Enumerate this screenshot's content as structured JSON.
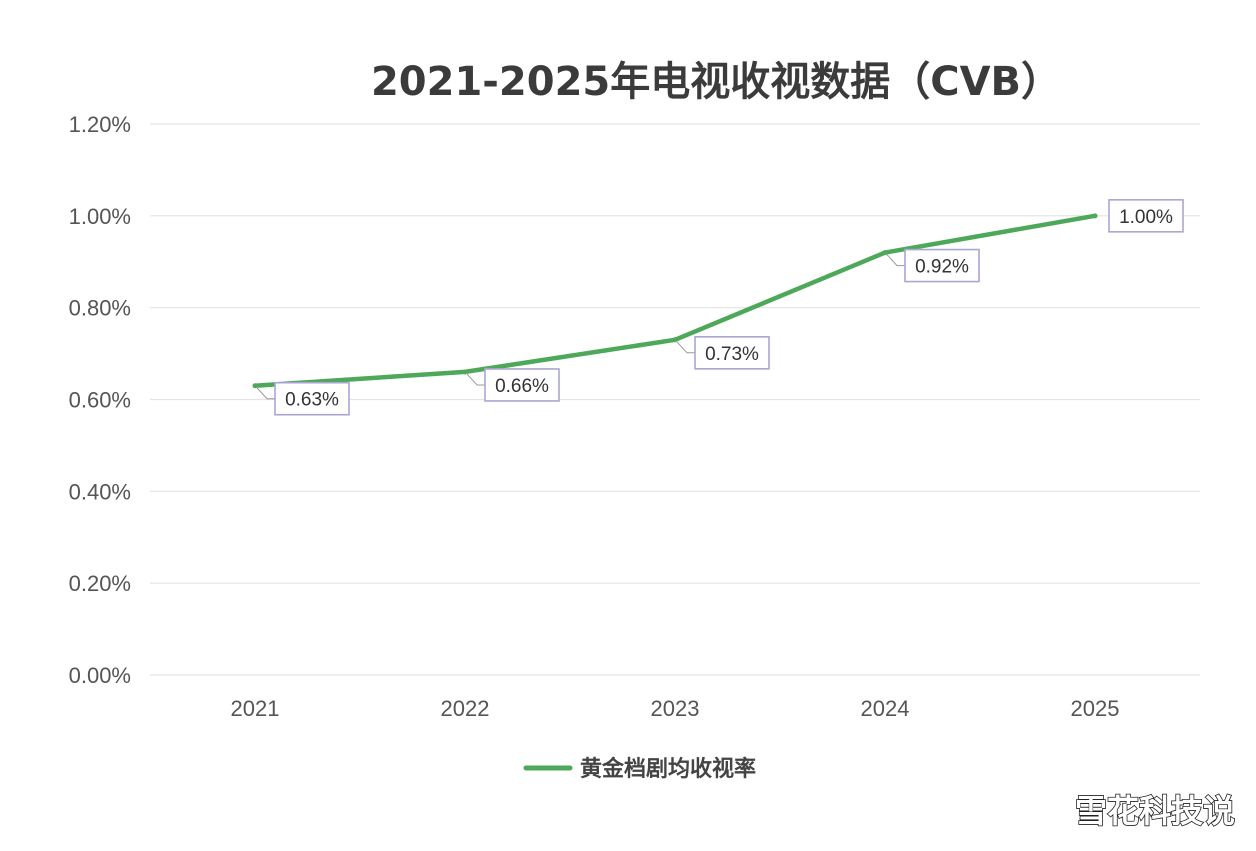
{
  "chart_data": {
    "type": "line",
    "title": "2021-2025年电视收视数据（CVB）",
    "categories": [
      "2021",
      "2022",
      "2023",
      "2024",
      "2025"
    ],
    "series": [
      {
        "name": "黄金档剧均收视率",
        "values": [
          0.63,
          0.66,
          0.73,
          0.92,
          1.0
        ],
        "labels": [
          "0.63%",
          "0.66%",
          "0.73%",
          "0.92%",
          "1.00%"
        ],
        "color": "#4ea85a"
      }
    ],
    "ylim": [
      0,
      1.2
    ],
    "y_ticks": [
      0,
      0.2,
      0.4,
      0.6,
      0.8,
      1.0,
      1.2
    ],
    "y_tick_labels": [
      "0.00%",
      "0.20%",
      "0.40%",
      "0.60%",
      "0.80%",
      "1.00%",
      "1.20%"
    ],
    "grid": true,
    "legend_position": "bottom",
    "xlabel": "",
    "ylabel": ""
  },
  "watermark": "雪花科技说",
  "colors": {
    "line": "#4ea85a",
    "label_border": "#a9a6d4",
    "grid": "#e3e3e3"
  }
}
